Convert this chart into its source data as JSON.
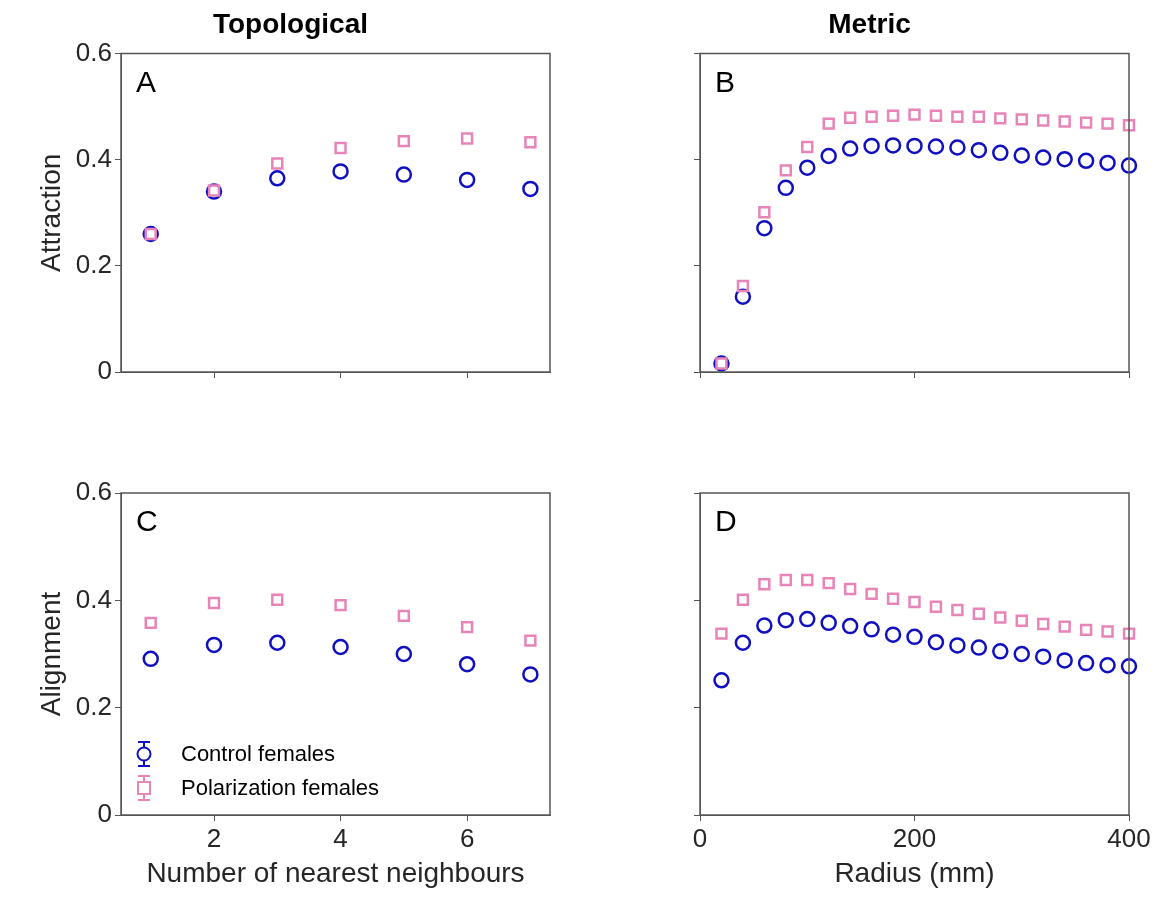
{
  "chart_data": [
    {
      "type": "scatter",
      "title": "Topological",
      "ylabel": "Attraction",
      "annotations": [
        "A"
      ],
      "x": [
        1,
        2,
        3,
        4,
        5,
        6,
        7
      ],
      "xlim": [
        0.53,
        7.31
      ],
      "xticks": [
        2,
        4,
        6
      ],
      "ylim": [
        0,
        0.6
      ],
      "yticks": [
        0,
        0.2,
        0.4,
        0.6
      ],
      "tick_labels": "y",
      "series": [
        {
          "color": "#1010c0",
          "marker": "circle",
          "values": [
            0.26,
            0.34,
            0.365,
            0.378,
            0.372,
            0.362,
            0.345
          ]
        },
        {
          "color": "#e884b8",
          "marker": "square",
          "values": [
            0.26,
            0.342,
            0.393,
            0.422,
            0.435,
            0.44,
            0.433
          ]
        }
      ]
    },
    {
      "type": "scatter",
      "title": "Metric",
      "annotations": [
        "B"
      ],
      "x": [
        20,
        40,
        60,
        80,
        100,
        120,
        140,
        160,
        180,
        200,
        220,
        240,
        260,
        280,
        300,
        320,
        340,
        360,
        380,
        400
      ],
      "xlim": [
        0,
        400
      ],
      "xticks": [
        0,
        200,
        400
      ],
      "ylim": [
        0,
        0.6
      ],
      "yticks": [
        0,
        0.2,
        0.4,
        0.6
      ],
      "tick_labels": false,
      "series": [
        {
          "color": "#1010c0",
          "marker": "circle",
          "values": [
            0.016,
            0.142,
            0.271,
            0.347,
            0.385,
            0.407,
            0.421,
            0.426,
            0.427,
            0.426,
            0.425,
            0.423,
            0.418,
            0.413,
            0.408,
            0.404,
            0.401,
            0.398,
            0.394,
            0.389
          ]
        },
        {
          "color": "#e884b8",
          "marker": "square",
          "values": [
            0.016,
            0.162,
            0.301,
            0.38,
            0.424,
            0.468,
            0.479,
            0.481,
            0.483,
            0.485,
            0.483,
            0.481,
            0.481,
            0.478,
            0.476,
            0.474,
            0.472,
            0.47,
            0.468,
            0.465
          ]
        }
      ]
    },
    {
      "type": "scatter",
      "xlabel": "Number of nearest neighbours",
      "ylabel": "Alignment",
      "annotations": [
        "C"
      ],
      "legend": "bottom left",
      "x": [
        1,
        2,
        3,
        4,
        5,
        6,
        7
      ],
      "xlim": [
        0.53,
        7.31
      ],
      "xticks": [
        2,
        4,
        6
      ],
      "ylim": [
        0,
        0.6
      ],
      "yticks": [
        0,
        0.2,
        0.4,
        0.6
      ],
      "series": [
        {
          "name": "Control females",
          "color": "#1010c0",
          "marker": "circle",
          "values": [
            0.291,
            0.317,
            0.321,
            0.313,
            0.3,
            0.281,
            0.262
          ]
        },
        {
          "name": "Polarization females",
          "color": "#e884b8",
          "marker": "square",
          "values": [
            0.358,
            0.395,
            0.401,
            0.391,
            0.371,
            0.35,
            0.325
          ]
        }
      ]
    },
    {
      "type": "scatter",
      "xlabel": "Radius (mm)",
      "annotations": [
        "D"
      ],
      "x": [
        20,
        40,
        60,
        80,
        100,
        120,
        140,
        160,
        180,
        200,
        220,
        240,
        260,
        280,
        300,
        320,
        340,
        360,
        380,
        400
      ],
      "xlim": [
        0,
        400
      ],
      "xticks": [
        0,
        200,
        400
      ],
      "ylim": [
        0,
        0.6
      ],
      "yticks": [
        0,
        0.2,
        0.4,
        0.6
      ],
      "tick_labels": "x",
      "series": [
        {
          "color": "#1010c0",
          "marker": "circle",
          "values": [
            0.251,
            0.321,
            0.353,
            0.363,
            0.365,
            0.358,
            0.352,
            0.346,
            0.336,
            0.332,
            0.322,
            0.316,
            0.312,
            0.305,
            0.3,
            0.295,
            0.288,
            0.283,
            0.279,
            0.277
          ]
        },
        {
          "color": "#e884b8",
          "marker": "square",
          "values": [
            0.338,
            0.401,
            0.43,
            0.438,
            0.438,
            0.432,
            0.421,
            0.412,
            0.403,
            0.397,
            0.388,
            0.382,
            0.375,
            0.368,
            0.362,
            0.356,
            0.351,
            0.345,
            0.342,
            0.338
          ]
        }
      ]
    }
  ]
}
